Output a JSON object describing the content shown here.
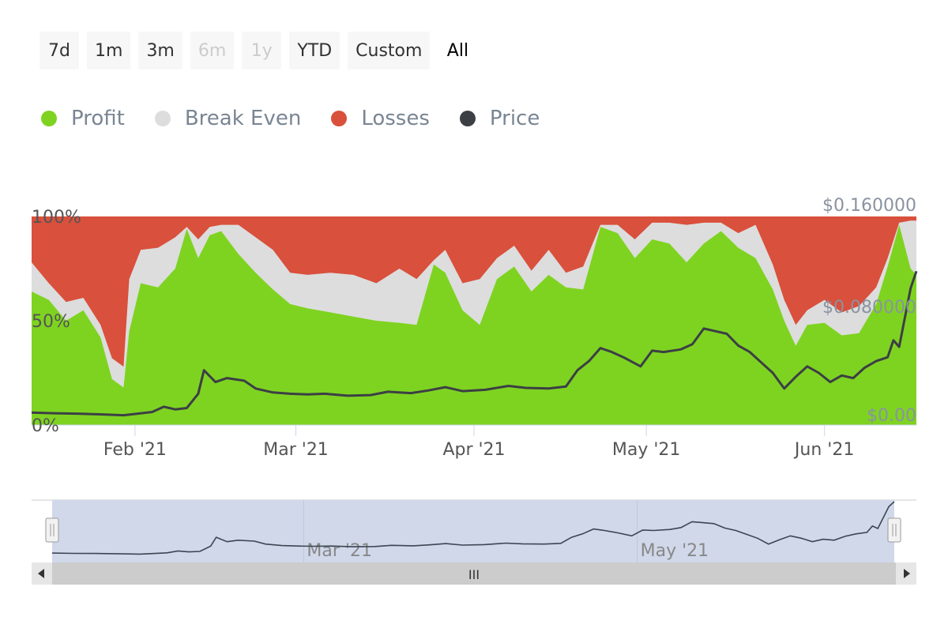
{
  "range_selector": {
    "buttons": [
      {
        "label": "7d",
        "state": "enabled"
      },
      {
        "label": "1m",
        "state": "enabled"
      },
      {
        "label": "3m",
        "state": "enabled"
      },
      {
        "label": "6m",
        "state": "disabled"
      },
      {
        "label": "1y",
        "state": "disabled"
      },
      {
        "label": "YTD",
        "state": "enabled"
      },
      {
        "label": "Custom",
        "state": "enabled"
      },
      {
        "label": "All",
        "state": "selected"
      }
    ]
  },
  "legend": [
    {
      "label": "Profit",
      "color": "#7ed321"
    },
    {
      "label": "Break Even",
      "color": "#dddddd"
    },
    {
      "label": "Losses",
      "color": "#d9503c"
    },
    {
      "label": "Price",
      "color": "#3c3f44"
    }
  ],
  "colors": {
    "profit": "#7ed321",
    "break_even": "#dddddd",
    "losses": "#d9503c",
    "price": "#3c3f44",
    "navigator_mask": "#d0d8ea",
    "scrollbar_track": "#e6e6e6",
    "scrollbar_thumb": "#cccccc"
  },
  "chart_data": {
    "type": "area",
    "x_start": "2021-01-14",
    "x_end": "2021-06-17",
    "x_ticks": [
      {
        "date": "2021-02-01",
        "label": "Feb '21"
      },
      {
        "date": "2021-03-01",
        "label": "Mar '21"
      },
      {
        "date": "2021-04-01",
        "label": "Apr '21"
      },
      {
        "date": "2021-05-01",
        "label": "May '21"
      },
      {
        "date": "2021-06-01",
        "label": "Jun '21"
      }
    ],
    "y_left": {
      "ticks": [
        "0%",
        "50%",
        "100%"
      ],
      "range": [
        0,
        100
      ],
      "unit": "%"
    },
    "y_right": {
      "ticks": [
        "$0.00",
        "$0.080000",
        "$0.160000"
      ],
      "range": [
        0,
        0.16
      ]
    },
    "stacked": true,
    "series": [
      {
        "name": "Profit",
        "axis": "left",
        "points": [
          [
            "2021-01-14",
            64
          ],
          [
            "2021-01-17",
            60
          ],
          [
            "2021-01-20",
            50
          ],
          [
            "2021-01-23",
            55
          ],
          [
            "2021-01-26",
            42
          ],
          [
            "2021-01-28",
            22
          ],
          [
            "2021-01-30",
            18
          ],
          [
            "2021-01-31",
            45
          ],
          [
            "2021-02-02",
            68
          ],
          [
            "2021-02-05",
            66
          ],
          [
            "2021-02-08",
            75
          ],
          [
            "2021-02-10",
            94
          ],
          [
            "2021-02-12",
            80
          ],
          [
            "2021-02-14",
            91
          ],
          [
            "2021-02-16",
            93
          ],
          [
            "2021-02-19",
            82
          ],
          [
            "2021-02-22",
            73
          ],
          [
            "2021-02-25",
            65
          ],
          [
            "2021-02-28",
            58
          ],
          [
            "2021-03-03",
            56
          ],
          [
            "2021-03-07",
            54
          ],
          [
            "2021-03-11",
            52
          ],
          [
            "2021-03-15",
            50
          ],
          [
            "2021-03-19",
            49
          ],
          [
            "2021-03-22",
            48
          ],
          [
            "2021-03-25",
            77
          ],
          [
            "2021-03-27",
            73
          ],
          [
            "2021-03-30",
            55
          ],
          [
            "2021-04-02",
            48
          ],
          [
            "2021-04-05",
            70
          ],
          [
            "2021-04-08",
            76
          ],
          [
            "2021-04-11",
            64
          ],
          [
            "2021-04-14",
            72
          ],
          [
            "2021-04-17",
            66
          ],
          [
            "2021-04-20",
            65
          ],
          [
            "2021-04-23",
            95
          ],
          [
            "2021-04-26",
            92
          ],
          [
            "2021-04-29",
            80
          ],
          [
            "2021-05-02",
            89
          ],
          [
            "2021-05-05",
            87
          ],
          [
            "2021-05-08",
            78
          ],
          [
            "2021-05-11",
            87
          ],
          [
            "2021-05-14",
            93
          ],
          [
            "2021-05-17",
            85
          ],
          [
            "2021-05-20",
            80
          ],
          [
            "2021-05-23",
            65
          ],
          [
            "2021-05-25",
            50
          ],
          [
            "2021-05-27",
            38
          ],
          [
            "2021-05-29",
            48
          ],
          [
            "2021-06-01",
            49
          ],
          [
            "2021-06-04",
            43
          ],
          [
            "2021-06-07",
            44
          ],
          [
            "2021-06-10",
            58
          ],
          [
            "2021-06-12",
            76
          ],
          [
            "2021-06-14",
            96
          ],
          [
            "2021-06-16",
            75
          ],
          [
            "2021-06-17",
            72
          ]
        ]
      },
      {
        "name": "Break Even",
        "axis": "left",
        "points": [
          [
            "2021-01-14",
            78
          ],
          [
            "2021-01-17",
            68
          ],
          [
            "2021-01-20",
            59
          ],
          [
            "2021-01-23",
            61
          ],
          [
            "2021-01-26",
            48
          ],
          [
            "2021-01-28",
            32
          ],
          [
            "2021-01-30",
            28
          ],
          [
            "2021-01-31",
            70
          ],
          [
            "2021-02-02",
            84
          ],
          [
            "2021-02-05",
            85
          ],
          [
            "2021-02-08",
            90
          ],
          [
            "2021-02-10",
            95
          ],
          [
            "2021-02-12",
            89
          ],
          [
            "2021-02-14",
            95
          ],
          [
            "2021-02-16",
            96
          ],
          [
            "2021-02-19",
            96
          ],
          [
            "2021-02-22",
            90
          ],
          [
            "2021-02-25",
            84
          ],
          [
            "2021-02-28",
            73
          ],
          [
            "2021-03-03",
            72
          ],
          [
            "2021-03-07",
            73
          ],
          [
            "2021-03-11",
            72
          ],
          [
            "2021-03-15",
            68
          ],
          [
            "2021-03-19",
            75
          ],
          [
            "2021-03-22",
            70
          ],
          [
            "2021-03-25",
            79
          ],
          [
            "2021-03-27",
            84
          ],
          [
            "2021-03-30",
            68
          ],
          [
            "2021-04-02",
            70
          ],
          [
            "2021-04-05",
            80
          ],
          [
            "2021-04-08",
            86
          ],
          [
            "2021-04-11",
            74
          ],
          [
            "2021-04-14",
            84
          ],
          [
            "2021-04-17",
            73
          ],
          [
            "2021-04-20",
            76
          ],
          [
            "2021-04-23",
            96
          ],
          [
            "2021-04-26",
            96
          ],
          [
            "2021-04-29",
            89
          ],
          [
            "2021-05-02",
            97
          ],
          [
            "2021-05-05",
            97
          ],
          [
            "2021-05-08",
            96
          ],
          [
            "2021-05-11",
            97
          ],
          [
            "2021-05-14",
            97
          ],
          [
            "2021-05-17",
            92
          ],
          [
            "2021-05-20",
            96
          ],
          [
            "2021-05-23",
            77
          ],
          [
            "2021-05-25",
            60
          ],
          [
            "2021-05-27",
            48
          ],
          [
            "2021-05-29",
            55
          ],
          [
            "2021-06-01",
            60
          ],
          [
            "2021-06-04",
            54
          ],
          [
            "2021-06-07",
            57
          ],
          [
            "2021-06-10",
            66
          ],
          [
            "2021-06-12",
            80
          ],
          [
            "2021-06-14",
            97
          ],
          [
            "2021-06-16",
            98
          ],
          [
            "2021-06-17",
            98
          ]
        ]
      },
      {
        "name": "Losses",
        "axis": "left",
        "points": [
          [
            "2021-01-14",
            100
          ],
          [
            "2021-06-17",
            100
          ]
        ]
      },
      {
        "name": "Price",
        "axis": "right",
        "points": [
          [
            "2021-01-14",
            0.0095
          ],
          [
            "2021-01-18",
            0.009
          ],
          [
            "2021-01-22",
            0.0087
          ],
          [
            "2021-01-26",
            0.0082
          ],
          [
            "2021-01-30",
            0.0075
          ],
          [
            "2021-02-01",
            0.0085
          ],
          [
            "2021-02-04",
            0.01
          ],
          [
            "2021-02-06",
            0.014
          ],
          [
            "2021-02-08",
            0.012
          ],
          [
            "2021-02-10",
            0.013
          ],
          [
            "2021-02-12",
            0.024
          ],
          [
            "2021-02-13",
            0.042
          ],
          [
            "2021-02-15",
            0.033
          ],
          [
            "2021-02-17",
            0.036
          ],
          [
            "2021-02-20",
            0.034
          ],
          [
            "2021-02-22",
            0.028
          ],
          [
            "2021-02-25",
            0.025
          ],
          [
            "2021-02-28",
            0.024
          ],
          [
            "2021-03-03",
            0.0235
          ],
          [
            "2021-03-06",
            0.024
          ],
          [
            "2021-03-10",
            0.0225
          ],
          [
            "2021-03-14",
            0.023
          ],
          [
            "2021-03-17",
            0.0255
          ],
          [
            "2021-03-21",
            0.0245
          ],
          [
            "2021-03-24",
            0.0265
          ],
          [
            "2021-03-27",
            0.029
          ],
          [
            "2021-03-30",
            0.026
          ],
          [
            "2021-04-03",
            0.027
          ],
          [
            "2021-04-07",
            0.03
          ],
          [
            "2021-04-10",
            0.0285
          ],
          [
            "2021-04-14",
            0.028
          ],
          [
            "2021-04-17",
            0.0295
          ],
          [
            "2021-04-19",
            0.042
          ],
          [
            "2021-04-21",
            0.049
          ],
          [
            "2021-04-23",
            0.059
          ],
          [
            "2021-04-25",
            0.056
          ],
          [
            "2021-04-27",
            0.052
          ],
          [
            "2021-04-30",
            0.045
          ],
          [
            "2021-05-02",
            0.057
          ],
          [
            "2021-05-04",
            0.056
          ],
          [
            "2021-05-07",
            0.058
          ],
          [
            "2021-05-09",
            0.062
          ],
          [
            "2021-05-11",
            0.074
          ],
          [
            "2021-05-13",
            0.072
          ],
          [
            "2021-05-15",
            0.07
          ],
          [
            "2021-05-17",
            0.061
          ],
          [
            "2021-05-19",
            0.056
          ],
          [
            "2021-05-21",
            0.048
          ],
          [
            "2021-05-23",
            0.04
          ],
          [
            "2021-05-25",
            0.028
          ],
          [
            "2021-05-27",
            0.037
          ],
          [
            "2021-05-29",
            0.045
          ],
          [
            "2021-05-31",
            0.04
          ],
          [
            "2021-06-02",
            0.033
          ],
          [
            "2021-06-04",
            0.038
          ],
          [
            "2021-06-06",
            0.036
          ],
          [
            "2021-06-08",
            0.044
          ],
          [
            "2021-06-10",
            0.049
          ],
          [
            "2021-06-12",
            0.052
          ],
          [
            "2021-06-13",
            0.065
          ],
          [
            "2021-06-14",
            0.06
          ],
          [
            "2021-06-16",
            0.105
          ],
          [
            "2021-06-17",
            0.118
          ]
        ]
      }
    ]
  },
  "navigator": {
    "x_ticks": [
      {
        "date": "2021-03-01",
        "label": "Mar '21"
      },
      {
        "date": "2021-05-01",
        "label": "May '21"
      }
    ],
    "selected_range": [
      "2021-01-14",
      "2021-06-17"
    ],
    "scrollbar_thumb_glyph": "III"
  }
}
